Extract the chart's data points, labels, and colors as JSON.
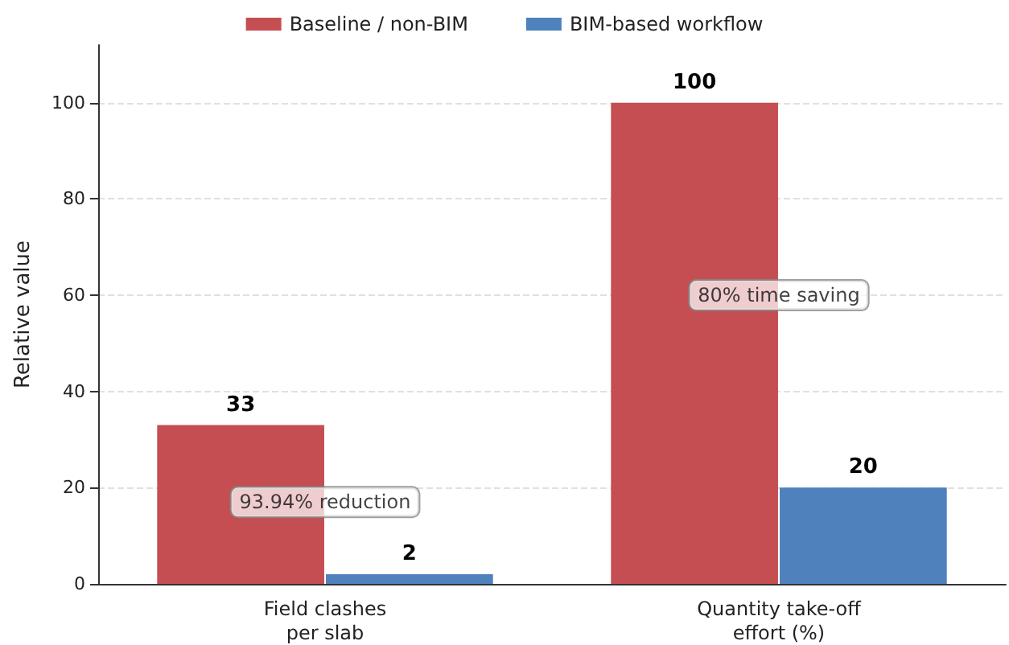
{
  "chart_data": {
    "type": "bar",
    "ylabel": "Relative value",
    "categories": [
      "Field clashes\nper slab",
      "Quantity take-off\neffort (%)"
    ],
    "series": [
      {
        "name": "Baseline / non-BIM",
        "color": "#c44e52",
        "values": [
          33,
          100
        ]
      },
      {
        "name": "BIM-based workflow",
        "color": "#4f81bd",
        "values": [
          2,
          20
        ]
      }
    ],
    "ylim": [
      0,
      112
    ],
    "yticks": [
      0,
      20,
      40,
      60,
      80,
      100
    ],
    "grid": "y",
    "legend": "top",
    "data_labels": true,
    "annotations": [
      {
        "text": "93.94% reduction",
        "x": "Field clashes\nper slab",
        "y": 17
      },
      {
        "text": "80% time saving",
        "x": "Quantity take-off\neffort (%)",
        "y": 60
      }
    ]
  }
}
